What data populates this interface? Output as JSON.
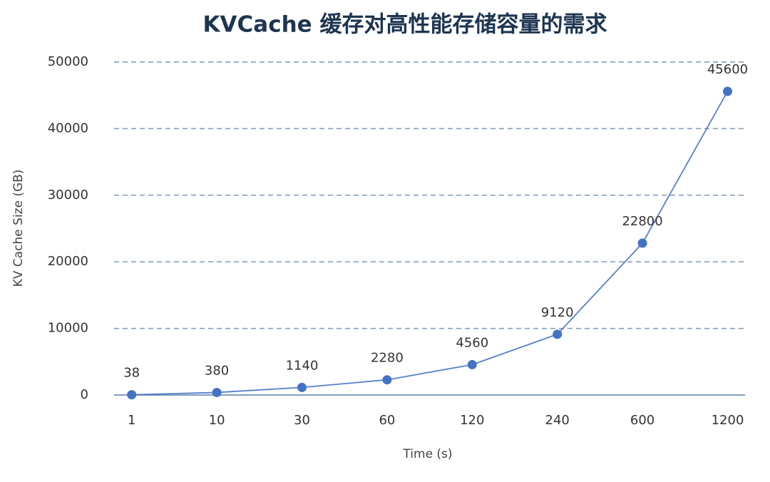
{
  "chart_data": {
    "type": "line",
    "title": "KVCache 缓存对高性能存储容量的需求",
    "x_label": "Time (s)",
    "y_label": "KV Cache Size (GB)",
    "categories": [
      "1",
      "10",
      "30",
      "60",
      "120",
      "240",
      "600",
      "1200"
    ],
    "series": [
      {
        "name": "KV Cache Size (GB)",
        "color": "#4472c4",
        "values": [
          38,
          380,
          1140,
          2280,
          4560,
          9120,
          22800,
          45600
        ]
      }
    ],
    "ylim": [
      0,
      50000
    ],
    "yticks": [
      0,
      10000,
      20000,
      30000,
      40000,
      50000
    ],
    "grid": true
  }
}
